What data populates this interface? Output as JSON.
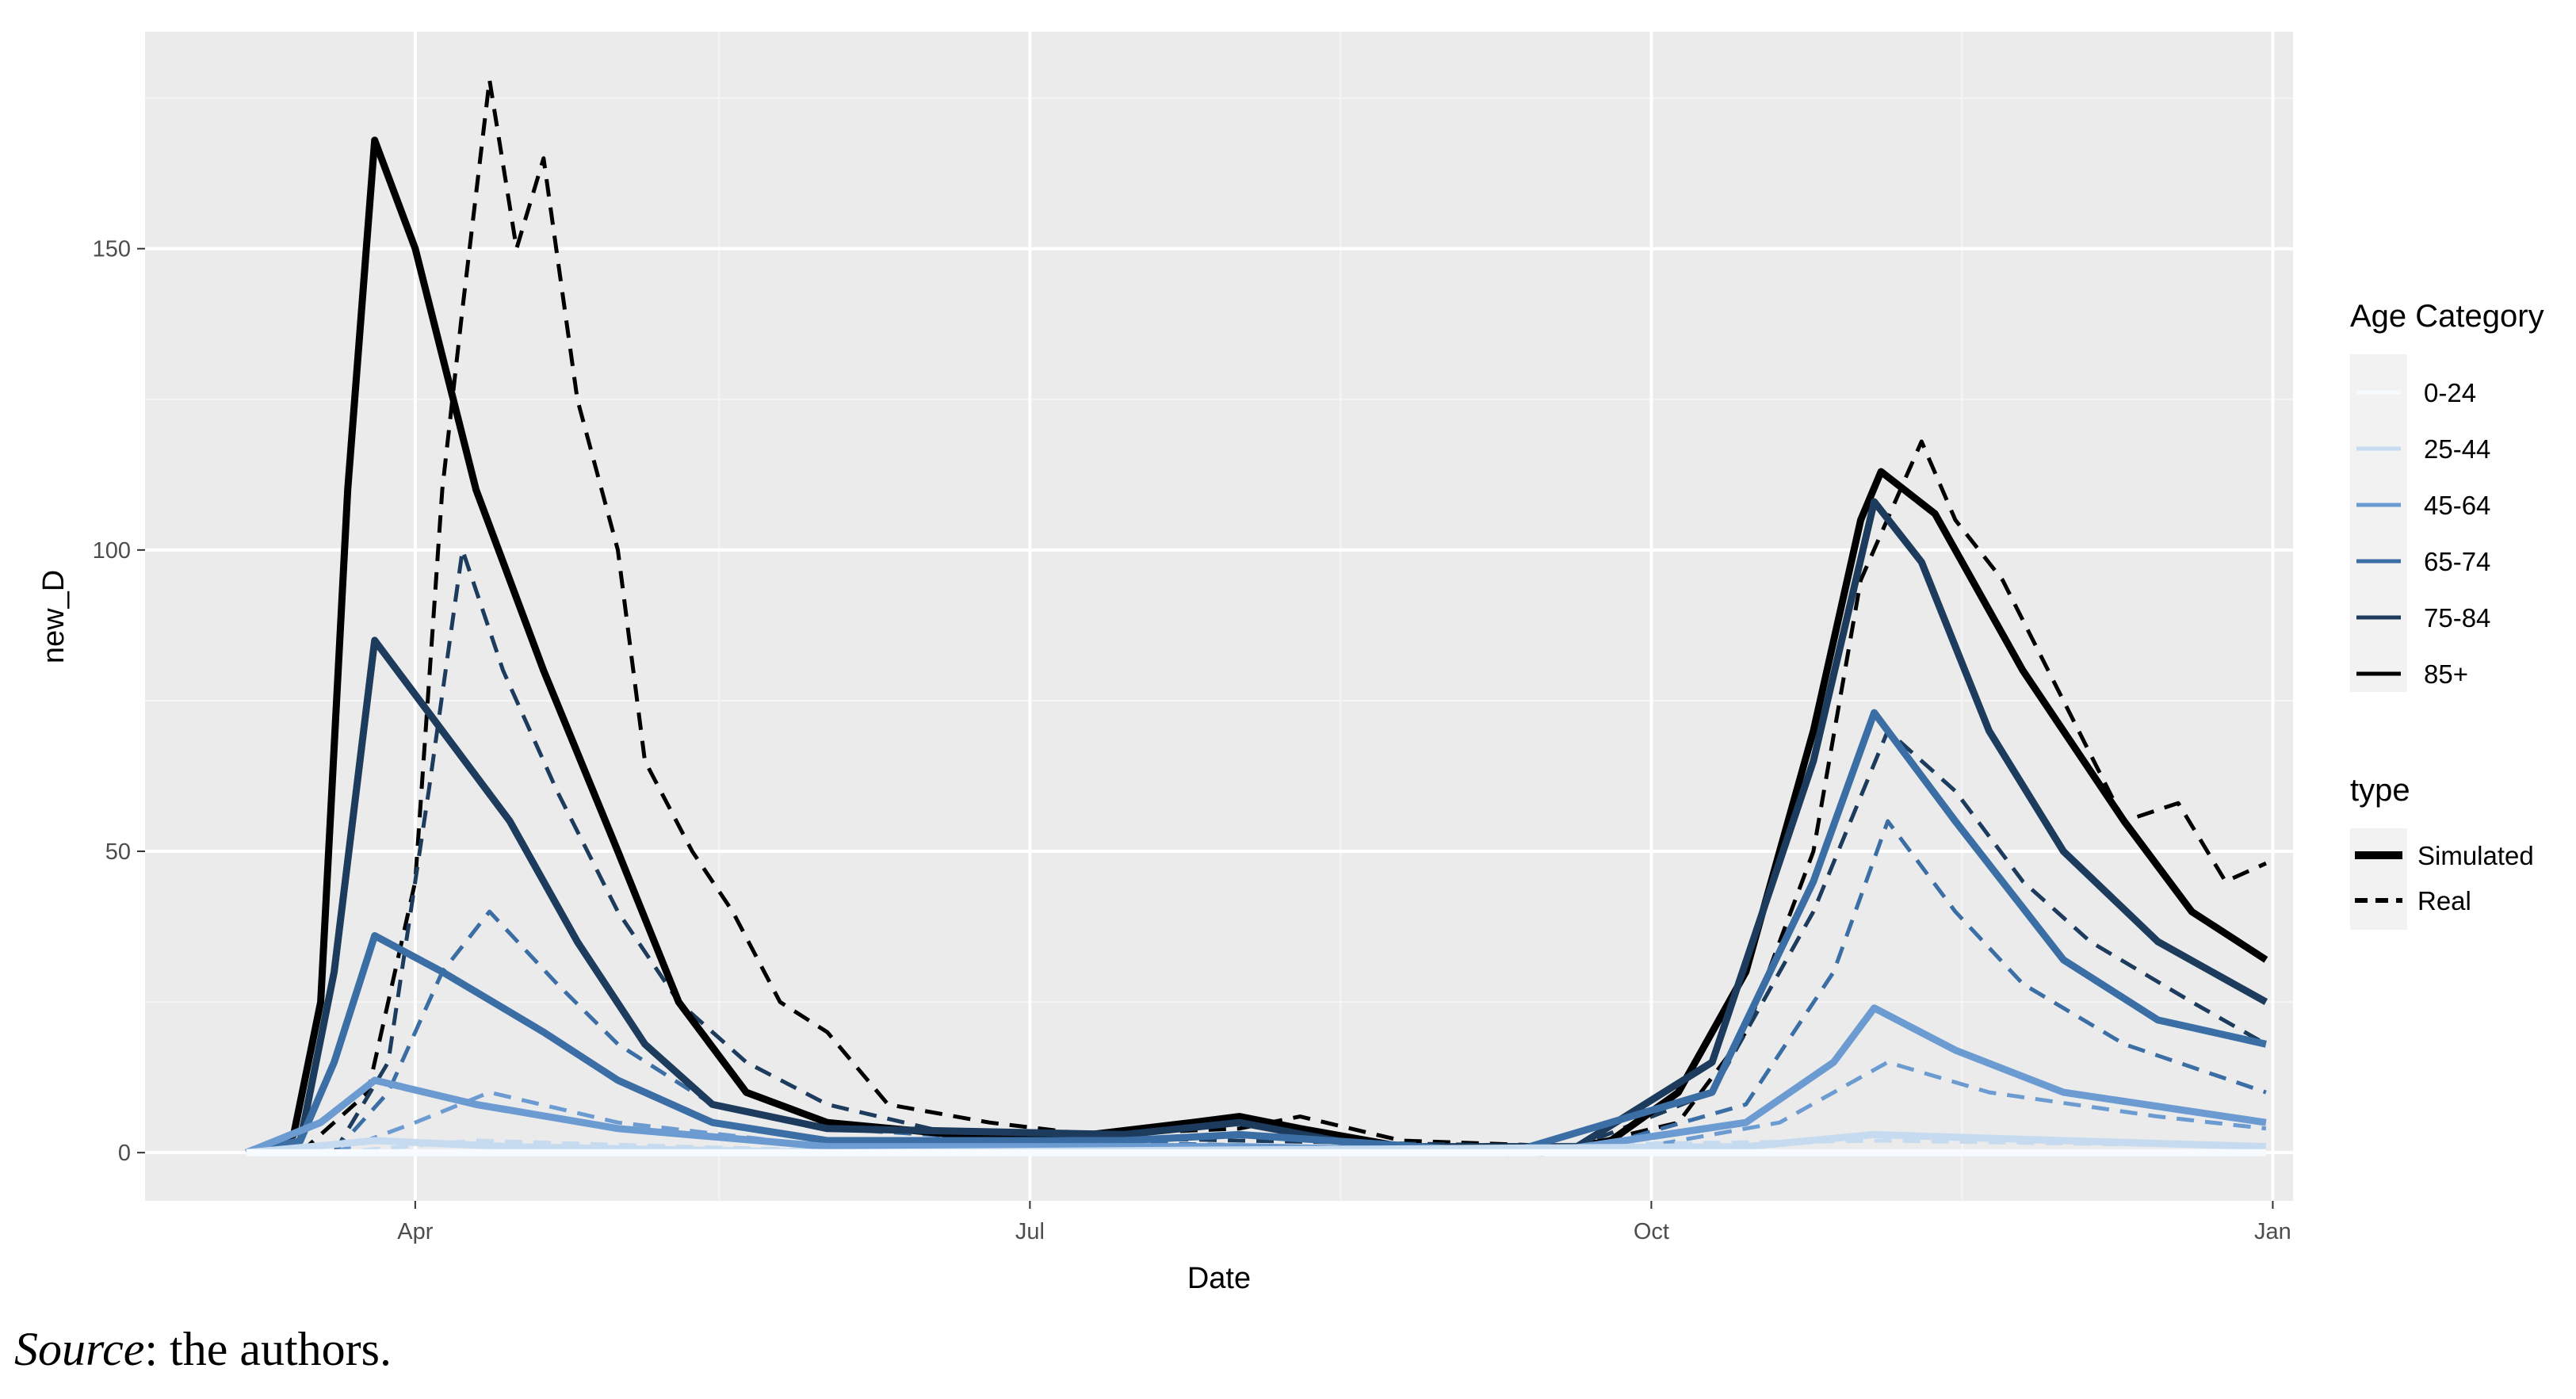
{
  "chart_data": {
    "type": "line",
    "xlabel": "Date",
    "ylabel": "new_D",
    "ylim": [
      -8,
      186
    ],
    "yticks": [
      0,
      50,
      100,
      150
    ],
    "x_axis": {
      "kind": "date",
      "range": [
        "2020-02-21",
        "2021-01-04"
      ]
    },
    "xticks": [
      {
        "date": "2020-04-01",
        "label": "Apr"
      },
      {
        "date": "2020-07-01",
        "label": "Jul"
      },
      {
        "date": "2020-10-01",
        "label": "Oct"
      },
      {
        "date": "2021-01-01",
        "label": "Jan"
      }
    ],
    "x_minor_gridlines": [
      "2020-05-16",
      "2020-08-16",
      "2020-11-16"
    ],
    "grid": true,
    "legend_position": "right",
    "legends": {
      "age": {
        "title": "Age Category",
        "items": [
          {
            "label": "0-24",
            "color": "#f7fbff"
          },
          {
            "label": "25-44",
            "color": "#c6dbef"
          },
          {
            "label": "45-64",
            "color": "#6b9bd1"
          },
          {
            "label": "65-74",
            "color": "#3a6ea5"
          },
          {
            "label": "75-84",
            "color": "#1d3b5c"
          },
          {
            "label": "85+",
            "color": "#000000"
          }
        ]
      },
      "type": {
        "title": "type",
        "items": [
          {
            "label": "Simulated",
            "style": "solid"
          },
          {
            "label": "Real",
            "style": "dashed"
          }
        ]
      }
    },
    "series": [
      {
        "age": "85+",
        "type": "Simulated",
        "color": "#000000",
        "points": [
          [
            "2020-03-07",
            0
          ],
          [
            "2020-03-14",
            3
          ],
          [
            "2020-03-18",
            25
          ],
          [
            "2020-03-22",
            110
          ],
          [
            "2020-03-26",
            168
          ],
          [
            "2020-04-01",
            150
          ],
          [
            "2020-04-10",
            110
          ],
          [
            "2020-04-20",
            80
          ],
          [
            "2020-05-01",
            50
          ],
          [
            "2020-05-10",
            25
          ],
          [
            "2020-05-20",
            10
          ],
          [
            "2020-06-01",
            5
          ],
          [
            "2020-06-20",
            3
          ],
          [
            "2020-07-10",
            3
          ],
          [
            "2020-07-25",
            5
          ],
          [
            "2020-08-01",
            6
          ],
          [
            "2020-08-10",
            4
          ],
          [
            "2020-08-25",
            1
          ],
          [
            "2020-09-15",
            0
          ],
          [
            "2020-09-25",
            2
          ],
          [
            "2020-10-05",
            10
          ],
          [
            "2020-10-15",
            30
          ],
          [
            "2020-10-25",
            70
          ],
          [
            "2020-11-01",
            105
          ],
          [
            "2020-11-04",
            113
          ],
          [
            "2020-11-12",
            106
          ],
          [
            "2020-11-25",
            80
          ],
          [
            "2020-12-10",
            55
          ],
          [
            "2020-12-20",
            40
          ],
          [
            "2020-12-31",
            32
          ]
        ]
      },
      {
        "age": "75-84",
        "type": "Simulated",
        "color": "#1d3b5c",
        "points": [
          [
            "2020-03-07",
            0
          ],
          [
            "2020-03-15",
            2
          ],
          [
            "2020-03-20",
            30
          ],
          [
            "2020-03-26",
            85
          ],
          [
            "2020-04-05",
            70
          ],
          [
            "2020-04-15",
            55
          ],
          [
            "2020-04-25",
            35
          ],
          [
            "2020-05-05",
            18
          ],
          [
            "2020-05-15",
            8
          ],
          [
            "2020-06-01",
            4
          ],
          [
            "2020-07-15",
            3
          ],
          [
            "2020-08-01",
            5
          ],
          [
            "2020-08-20",
            1
          ],
          [
            "2020-09-20",
            1
          ],
          [
            "2020-10-10",
            15
          ],
          [
            "2020-10-25",
            65
          ],
          [
            "2020-11-03",
            108
          ],
          [
            "2020-11-10",
            98
          ],
          [
            "2020-11-20",
            70
          ],
          [
            "2020-12-01",
            50
          ],
          [
            "2020-12-15",
            35
          ],
          [
            "2020-12-31",
            25
          ]
        ]
      },
      {
        "age": "65-74",
        "type": "Simulated",
        "color": "#3a6ea5",
        "points": [
          [
            "2020-03-07",
            0
          ],
          [
            "2020-03-15",
            2
          ],
          [
            "2020-03-20",
            15
          ],
          [
            "2020-03-26",
            36
          ],
          [
            "2020-04-05",
            30
          ],
          [
            "2020-04-20",
            20
          ],
          [
            "2020-05-01",
            12
          ],
          [
            "2020-05-15",
            5
          ],
          [
            "2020-06-01",
            2
          ],
          [
            "2020-07-15",
            2
          ],
          [
            "2020-08-01",
            3
          ],
          [
            "2020-09-10",
            0
          ],
          [
            "2020-10-10",
            10
          ],
          [
            "2020-10-25",
            45
          ],
          [
            "2020-11-03",
            73
          ],
          [
            "2020-11-15",
            55
          ],
          [
            "2020-12-01",
            32
          ],
          [
            "2020-12-15",
            22
          ],
          [
            "2020-12-31",
            18
          ]
        ]
      },
      {
        "age": "45-64",
        "type": "Simulated",
        "color": "#6b9bd1",
        "points": [
          [
            "2020-03-07",
            0
          ],
          [
            "2020-03-18",
            5
          ],
          [
            "2020-03-26",
            12
          ],
          [
            "2020-04-10",
            8
          ],
          [
            "2020-05-01",
            4
          ],
          [
            "2020-06-01",
            1
          ],
          [
            "2020-08-01",
            1
          ],
          [
            "2020-09-15",
            0
          ],
          [
            "2020-10-15",
            5
          ],
          [
            "2020-10-28",
            15
          ],
          [
            "2020-11-03",
            24
          ],
          [
            "2020-11-15",
            17
          ],
          [
            "2020-12-01",
            10
          ],
          [
            "2020-12-31",
            5
          ]
        ]
      },
      {
        "age": "25-44",
        "type": "Simulated",
        "color": "#c6dbef",
        "points": [
          [
            "2020-03-07",
            0
          ],
          [
            "2020-03-26",
            2
          ],
          [
            "2020-04-15",
            1
          ],
          [
            "2020-06-01",
            0
          ],
          [
            "2020-10-15",
            1
          ],
          [
            "2020-11-03",
            3
          ],
          [
            "2020-12-01",
            2
          ],
          [
            "2020-12-31",
            1
          ]
        ]
      },
      {
        "age": "0-24",
        "type": "Simulated",
        "color": "#f7fbff",
        "points": [
          [
            "2020-03-07",
            0
          ],
          [
            "2020-12-31",
            0
          ]
        ]
      },
      {
        "age": "85+",
        "type": "Real",
        "color": "#000000",
        "points": [
          [
            "2020-03-15",
            0
          ],
          [
            "2020-03-25",
            10
          ],
          [
            "2020-04-01",
            45
          ],
          [
            "2020-04-05",
            110
          ],
          [
            "2020-04-08",
            140
          ],
          [
            "2020-04-12",
            178
          ],
          [
            "2020-04-16",
            150
          ],
          [
            "2020-04-20",
            165
          ],
          [
            "2020-04-25",
            125
          ],
          [
            "2020-05-01",
            100
          ],
          [
            "2020-05-05",
            65
          ],
          [
            "2020-05-12",
            50
          ],
          [
            "2020-05-18",
            40
          ],
          [
            "2020-05-25",
            25
          ],
          [
            "2020-06-01",
            20
          ],
          [
            "2020-06-10",
            8
          ],
          [
            "2020-06-25",
            5
          ],
          [
            "2020-07-10",
            3
          ],
          [
            "2020-08-01",
            4
          ],
          [
            "2020-08-10",
            6
          ],
          [
            "2020-08-25",
            2
          ],
          [
            "2020-09-20",
            1
          ],
          [
            "2020-10-05",
            5
          ],
          [
            "2020-10-15",
            20
          ],
          [
            "2020-10-25",
            50
          ],
          [
            "2020-11-01",
            95
          ],
          [
            "2020-11-10",
            118
          ],
          [
            "2020-11-15",
            105
          ],
          [
            "2020-11-22",
            95
          ],
          [
            "2020-12-01",
            75
          ],
          [
            "2020-12-10",
            55
          ],
          [
            "2020-12-18",
            58
          ],
          [
            "2020-12-25",
            45
          ],
          [
            "2020-12-31",
            48
          ]
        ]
      },
      {
        "age": "75-84",
        "type": "Real",
        "color": "#1d3b5c",
        "points": [
          [
            "2020-03-20",
            0
          ],
          [
            "2020-03-28",
            15
          ],
          [
            "2020-04-03",
            60
          ],
          [
            "2020-04-08",
            100
          ],
          [
            "2020-04-14",
            80
          ],
          [
            "2020-04-22",
            60
          ],
          [
            "2020-05-01",
            40
          ],
          [
            "2020-05-10",
            25
          ],
          [
            "2020-05-20",
            15
          ],
          [
            "2020-06-01",
            8
          ],
          [
            "2020-06-20",
            3
          ],
          [
            "2020-08-01",
            2
          ],
          [
            "2020-09-20",
            1
          ],
          [
            "2020-10-10",
            10
          ],
          [
            "2020-10-25",
            40
          ],
          [
            "2020-11-05",
            70
          ],
          [
            "2020-11-15",
            60
          ],
          [
            "2020-11-25",
            45
          ],
          [
            "2020-12-05",
            35
          ],
          [
            "2020-12-20",
            25
          ],
          [
            "2020-12-31",
            18
          ]
        ]
      },
      {
        "age": "65-74",
        "type": "Real",
        "color": "#3a6ea5",
        "points": [
          [
            "2020-03-20",
            0
          ],
          [
            "2020-03-28",
            10
          ],
          [
            "2020-04-05",
            30
          ],
          [
            "2020-04-12",
            40
          ],
          [
            "2020-04-22",
            28
          ],
          [
            "2020-05-01",
            18
          ],
          [
            "2020-05-15",
            8
          ],
          [
            "2020-06-01",
            4
          ],
          [
            "2020-07-01",
            2
          ],
          [
            "2020-09-20",
            0
          ],
          [
            "2020-10-15",
            8
          ],
          [
            "2020-10-28",
            30
          ],
          [
            "2020-11-05",
            55
          ],
          [
            "2020-11-15",
            40
          ],
          [
            "2020-11-25",
            28
          ],
          [
            "2020-12-10",
            18
          ],
          [
            "2020-12-31",
            10
          ]
        ]
      },
      {
        "age": "45-64",
        "type": "Real",
        "color": "#6b9bd1",
        "points": [
          [
            "2020-03-20",
            0
          ],
          [
            "2020-04-01",
            5
          ],
          [
            "2020-04-12",
            10
          ],
          [
            "2020-05-01",
            5
          ],
          [
            "2020-06-01",
            1
          ],
          [
            "2020-09-25",
            0
          ],
          [
            "2020-10-20",
            5
          ],
          [
            "2020-11-05",
            15
          ],
          [
            "2020-11-20",
            10
          ],
          [
            "2020-12-15",
            6
          ],
          [
            "2020-12-31",
            4
          ]
        ]
      },
      {
        "age": "25-44",
        "type": "Real",
        "color": "#c6dbef",
        "points": [
          [
            "2020-03-20",
            0
          ],
          [
            "2020-04-10",
            2
          ],
          [
            "2020-05-10",
            1
          ],
          [
            "2020-06-15",
            0
          ],
          [
            "2020-11-05",
            2
          ],
          [
            "2020-12-31",
            1
          ]
        ]
      },
      {
        "age": "0-24",
        "type": "Real",
        "color": "#f7fbff",
        "points": [
          [
            "2020-03-20",
            0
          ],
          [
            "2020-12-31",
            0
          ]
        ]
      }
    ]
  },
  "source_note": {
    "label": "Source",
    "text": ": the authors."
  }
}
